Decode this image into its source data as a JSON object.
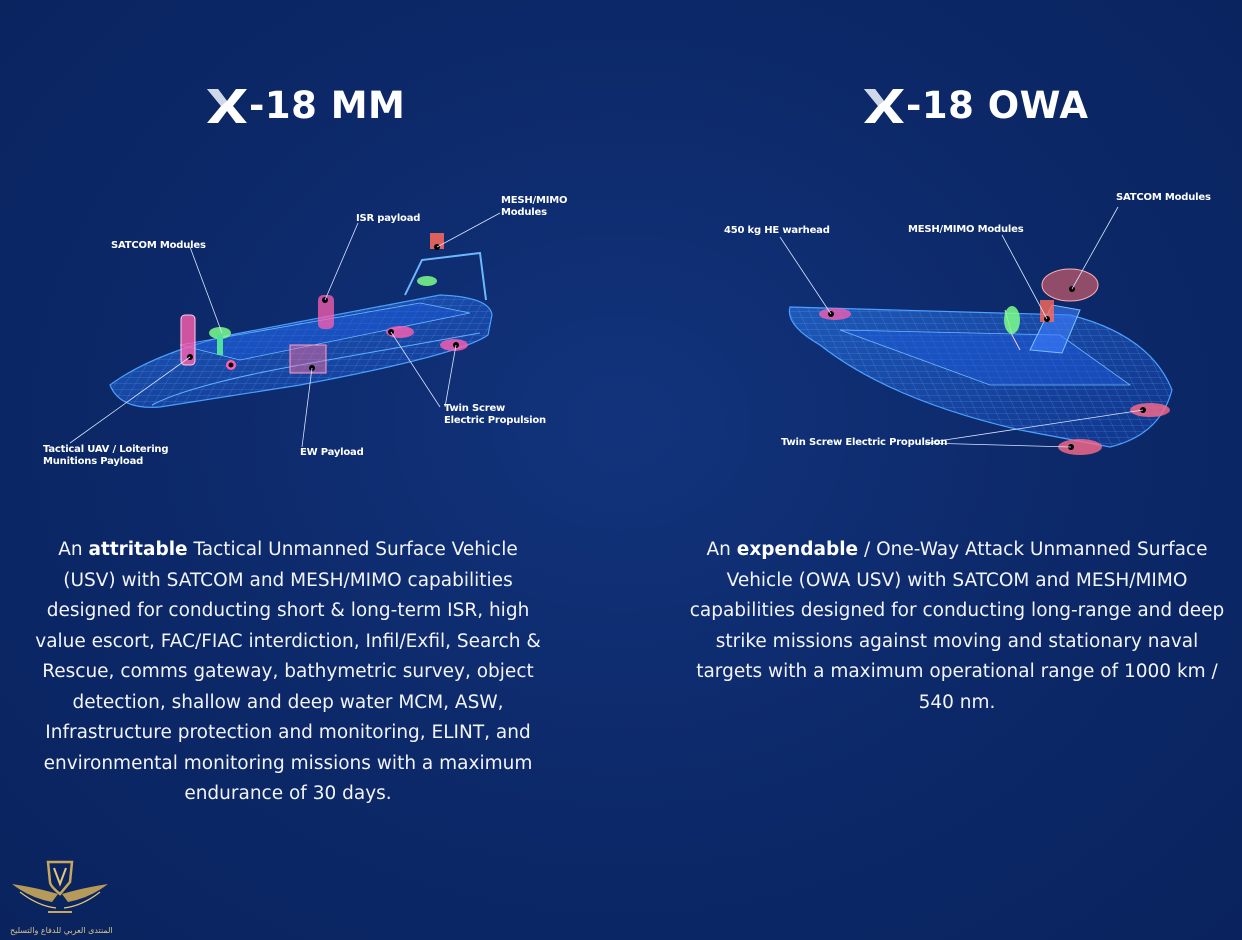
{
  "left": {
    "title": "-18 MM",
    "callouts": {
      "isr": "ISR payload",
      "mesh": "MESH/MIMO\nModules",
      "satcom": "SATCOM Modules",
      "uav": "Tactical UAV / Loitering\nMunitions Payload",
      "ew": "EW Payload",
      "twin": "Twin Screw\nElectric Propulsion"
    },
    "desc_pre": "An ",
    "desc_bold": "attritable",
    "desc_post": " Tactical Unmanned Surface Vehicle (USV) with SATCOM and MESH/MIMO capabilities designed for conducting short & long-term ISR, high value escort, FAC/FIAC interdiction, Infil/Exfil, Search & Rescue, comms gateway, bathymetric survey, object detection, shallow and deep water MCM, ASW, Infrastructure protection and monitoring, ELINT, and environmental monitoring missions with a maximum endurance of 30 days."
  },
  "right": {
    "title": "-18 OWA",
    "callouts": {
      "satcom": "SATCOM Modules",
      "warhead": "450 kg HE warhead",
      "mesh": "MESH/MIMO Modules",
      "twin": "Twin Screw Electric Propulsion"
    },
    "desc_pre": "An ",
    "desc_bold": "expendable",
    "desc_post": " / One-Way Attack Unmanned Surface Vehicle (OWA USV) with SATCOM and MESH/MIMO capabilities designed for conducting long-range and deep strike missions against moving and stationary naval targets with a maximum operational range of 1000 km / 540 nm."
  },
  "watermark": {
    "text": "المنتدى العربي للدفاع والتسليح"
  },
  "colors": {
    "background": "#0c2868",
    "wireframe": "#3d8bff",
    "glow_pink": "#ff5fb0",
    "glow_green": "#7dff8a",
    "gold": "#c9a75a"
  }
}
